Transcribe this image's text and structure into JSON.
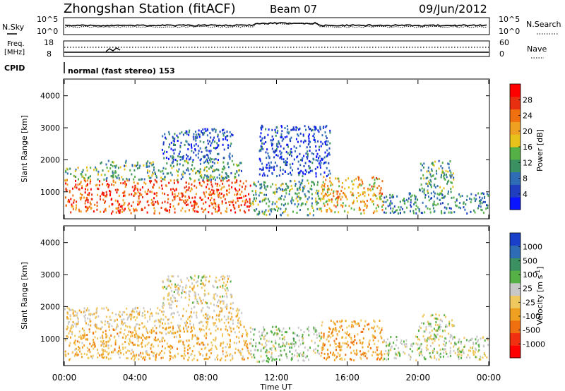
{
  "header": {
    "station": "Zhongshan Station (fitACF)",
    "beam": "Beam 07",
    "date": "09/Jun/2012"
  },
  "panels": {
    "nsky_label": "N.Sky",
    "nsky_ticks": [
      "10^5",
      "10^0"
    ],
    "nsearch_label": "N.Search",
    "nsearch_ticks": [
      "10^5",
      "10^0"
    ],
    "freq_label": "Freq.",
    "freq_unit": "[MHz]",
    "freq_ticks": [
      "18",
      "8"
    ],
    "nave_label": "Nave",
    "nave_ticks": [
      "60",
      "0"
    ],
    "cpid_label": "CPID",
    "cpid_text": "normal (fast stereo) 153"
  },
  "chart_data": [
    {
      "type": "heatmap",
      "name": "power",
      "ylabel": "Slant Range [km]",
      "yticks": [
        "4000",
        "3000",
        "2000",
        "1000"
      ],
      "ylim": [
        180,
        4500
      ],
      "xlim": [
        0,
        24
      ],
      "colorbar": {
        "label": "Power [dB]",
        "ticks": [
          "28",
          "24",
          "20",
          "16",
          "12",
          "8",
          "4"
        ],
        "range": [
          0,
          32
        ],
        "colors": [
          "#0a14ff",
          "#1f3fc0",
          "#2e6db5",
          "#3a9060",
          "#55b045",
          "#e6c21a",
          "#f0a020",
          "#f07010",
          "#e83010",
          "#ff0000"
        ]
      },
      "regions": [
        {
          "t0": 0.0,
          "t1": 10.5,
          "r0": 350,
          "r1": 1400,
          "level": 26
        },
        {
          "t0": 0.0,
          "t1": 2.0,
          "r0": 1400,
          "r1": 1800,
          "level": 14
        },
        {
          "t0": 2.0,
          "t1": 10.0,
          "r0": 1400,
          "r1": 2000,
          "level": 12
        },
        {
          "t0": 5.5,
          "t1": 9.5,
          "r0": 2000,
          "r1": 3000,
          "level": 6
        },
        {
          "t0": 10.5,
          "t1": 14.5,
          "r0": 300,
          "r1": 1400,
          "level": 12
        },
        {
          "t0": 11.0,
          "t1": 15.0,
          "r0": 1500,
          "r1": 3100,
          "level": 5
        },
        {
          "t0": 14.5,
          "t1": 18.0,
          "r0": 350,
          "r1": 1500,
          "level": 20
        },
        {
          "t0": 18.0,
          "t1": 24.0,
          "r0": 350,
          "r1": 1000,
          "level": 10
        },
        {
          "t0": 20.0,
          "t1": 22.0,
          "r0": 1000,
          "r1": 2000,
          "level": 12
        }
      ]
    },
    {
      "type": "heatmap",
      "name": "velocity",
      "ylabel": "Slant Range [km]",
      "yticks": [
        "4000",
        "3000",
        "2000",
        "1000"
      ],
      "ylim": [
        180,
        4500
      ],
      "xlim": [
        0,
        24
      ],
      "xticks": [
        "00:00",
        "04:00",
        "08:00",
        "12:00",
        "16:00",
        "20:00",
        "00:00"
      ],
      "xlabel": "Time UT",
      "colorbar": {
        "label": "Velocity [m s",
        "label_sup": "-1",
        "label_end": "]",
        "ticks": [
          "1000",
          "500",
          "100",
          "25",
          "-25",
          "-100",
          "-500",
          "-1000"
        ],
        "range": [
          -1200,
          1200
        ],
        "colors": [
          "#ff0000",
          "#f03010",
          "#f07010",
          "#f0a020",
          "#f0c860",
          "#c8c8c8",
          "#55b045",
          "#3a9060",
          "#2e6db5",
          "#1a3fc8"
        ]
      },
      "regions": [
        {
          "t0": 0.0,
          "t1": 10.5,
          "r0": 350,
          "r1": 1400,
          "level": -250
        },
        {
          "t0": 0.0,
          "t1": 10.0,
          "r0": 1400,
          "r1": 2000,
          "level": -60
        },
        {
          "t0": 5.5,
          "t1": 9.5,
          "r0": 2000,
          "r1": 3000,
          "level": 0
        },
        {
          "t0": 10.5,
          "t1": 14.5,
          "r0": 300,
          "r1": 1400,
          "level": 200
        },
        {
          "t0": 14.5,
          "t1": 18.0,
          "r0": 350,
          "r1": 1600,
          "level": -350
        },
        {
          "t0": 18.0,
          "t1": 24.0,
          "r0": 350,
          "r1": 1100,
          "level": 150
        },
        {
          "t0": 20.0,
          "t1": 22.0,
          "r0": 1000,
          "r1": 1800,
          "level": 120
        }
      ]
    }
  ]
}
